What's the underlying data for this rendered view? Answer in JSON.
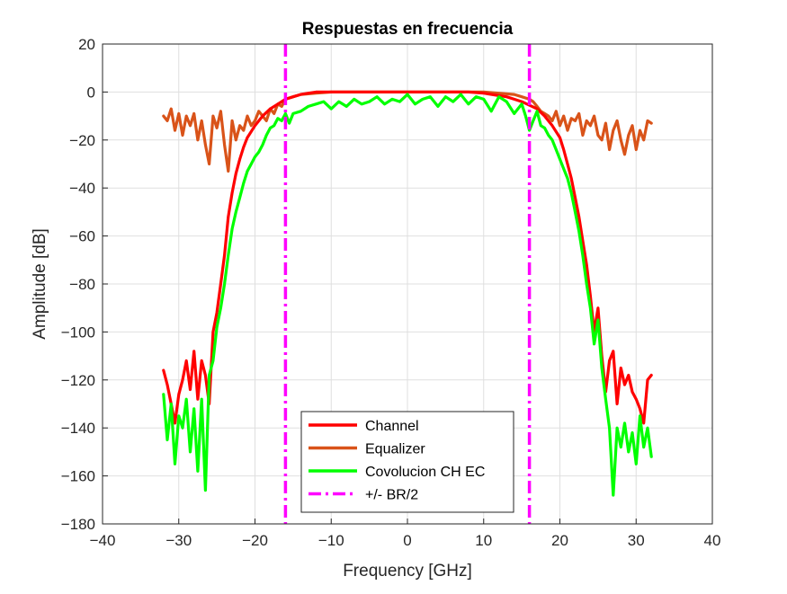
{
  "chart_data": {
    "type": "line",
    "title": "Respuestas en frecuencia",
    "xlabel": "Frequency [GHz]",
    "ylabel": "Amplitude [dB]",
    "xlim": [
      -40,
      40
    ],
    "ylim": [
      -180,
      20
    ],
    "xticks": [
      -40,
      -30,
      -20,
      -10,
      0,
      10,
      20,
      30,
      40
    ],
    "yticks": [
      20,
      0,
      -20,
      -40,
      -60,
      -80,
      -100,
      -120,
      -140,
      -160,
      -180
    ],
    "grid": true,
    "legend_position": "bottom-center",
    "series": [
      {
        "name": "Channel",
        "color": "#ff0000",
        "style": "solid",
        "x": [
          -32,
          -31.5,
          -31,
          -30.5,
          -30,
          -29.5,
          -29,
          -28.5,
          -28,
          -27.5,
          -27,
          -26.5,
          -26,
          -25.5,
          -25,
          -24.5,
          -24,
          -23.5,
          -23,
          -22.5,
          -22,
          -21.5,
          -21,
          -20,
          -19,
          -18,
          -17,
          -16,
          -15,
          -14,
          -13,
          -12,
          -10,
          -8,
          -6,
          -4,
          -2,
          0,
          2,
          4,
          6,
          8,
          10,
          11,
          12,
          13,
          14,
          15,
          16,
          17,
          18,
          19,
          20,
          20.5,
          21,
          21.5,
          22,
          22.5,
          23,
          23.5,
          24,
          24.5,
          25,
          25.5,
          26,
          26.5,
          27,
          27.5,
          28,
          28.5,
          29,
          29.5,
          30,
          30.5,
          31,
          31.5,
          32
        ],
        "y": [
          -116,
          -122,
          -130,
          -138,
          -126,
          -120,
          -112,
          -124,
          -108,
          -128,
          -112,
          -118,
          -130,
          -100,
          -92,
          -80,
          -68,
          -52,
          -42,
          -34,
          -28,
          -23,
          -19,
          -14,
          -10,
          -7,
          -5,
          -3,
          -2,
          -1,
          -0.5,
          0,
          0,
          0,
          0,
          0,
          0,
          0,
          0,
          0,
          0,
          0,
          -0.5,
          -1,
          -1.5,
          -2,
          -3,
          -4,
          -5.5,
          -7,
          -10,
          -14,
          -19,
          -24,
          -30,
          -36,
          -44,
          -52,
          -62,
          -72,
          -85,
          -100,
          -90,
          -110,
          -125,
          -112,
          -108,
          -130,
          -115,
          -122,
          -118,
          -125,
          -128,
          -132,
          -138,
          -120,
          -118
        ]
      },
      {
        "name": "Equalizer",
        "color": "#d95319",
        "style": "solid",
        "x": [
          -32,
          -31.5,
          -31,
          -30.5,
          -30,
          -29.5,
          -29,
          -28.5,
          -28,
          -27.5,
          -27,
          -26.5,
          -26,
          -25.5,
          -25,
          -24.5,
          -24,
          -23.5,
          -23,
          -22.5,
          -22,
          -21.5,
          -21,
          -20.5,
          -20,
          -19.5,
          -19,
          -18.5,
          -18,
          -17.5,
          -17,
          -16.5,
          -16,
          -15,
          -14,
          -12,
          -10,
          -8,
          -6,
          -4,
          -2,
          0,
          2,
          4,
          6,
          8,
          10,
          12,
          14,
          15,
          16,
          16.5,
          17,
          17.5,
          18,
          18.5,
          19,
          19.5,
          20,
          20.5,
          21,
          21.5,
          22,
          22.5,
          23,
          23.5,
          24,
          24.5,
          25,
          25.5,
          26,
          26.5,
          27,
          27.5,
          28,
          28.5,
          29,
          29.5,
          30,
          30.5,
          31,
          31.5,
          32
        ],
        "y": [
          -10,
          -12,
          -7,
          -16,
          -9,
          -18,
          -10,
          -14,
          -9,
          -20,
          -12,
          -22,
          -30,
          -10,
          -15,
          -8,
          -22,
          -33,
          -12,
          -20,
          -14,
          -16,
          -10,
          -14,
          -12,
          -8,
          -10,
          -12,
          -7,
          -9,
          -5,
          -6,
          -3,
          -2,
          -1,
          -0.5,
          0,
          0,
          0,
          0,
          0,
          0,
          0,
          0,
          0,
          0,
          0,
          -0.5,
          -1,
          -2,
          -3,
          -4,
          -6,
          -8,
          -9,
          -10,
          -12,
          -8,
          -14,
          -10,
          -16,
          -11,
          -12,
          -9,
          -18,
          -12,
          -14,
          -10,
          -18,
          -20,
          -13,
          -24,
          -16,
          -12,
          -20,
          -26,
          -18,
          -14,
          -24,
          -16,
          -20,
          -12,
          -13
        ]
      },
      {
        "name": "Covolucion CH EC",
        "color": "#00ff00",
        "style": "solid",
        "x": [
          -32,
          -31.5,
          -31,
          -30.5,
          -30,
          -29.5,
          -29,
          -28.5,
          -28,
          -27.5,
          -27,
          -26.5,
          -26,
          -25.5,
          -25,
          -24.5,
          -24,
          -23.5,
          -23,
          -22.5,
          -22,
          -21.5,
          -21,
          -20.5,
          -20,
          -19.5,
          -19,
          -18.5,
          -18,
          -17.5,
          -17,
          -16.5,
          -16,
          -15.5,
          -15,
          -14,
          -13,
          -12,
          -11,
          -10,
          -9,
          -8,
          -7,
          -6,
          -5,
          -4,
          -3,
          -2,
          -1,
          0,
          1,
          2,
          3,
          4,
          5,
          6,
          7,
          8,
          9,
          10,
          11,
          12,
          13,
          14,
          15,
          15.5,
          16,
          16.5,
          17,
          17.5,
          18,
          18.5,
          19,
          19.5,
          20,
          20.5,
          21,
          21.5,
          22,
          22.5,
          23,
          23.5,
          24,
          24.5,
          25,
          25.5,
          26,
          26.5,
          27,
          27.5,
          28,
          28.5,
          29,
          29.5,
          30,
          30.5,
          31,
          31.5,
          32
        ],
        "y": [
          -126,
          -145,
          -130,
          -155,
          -135,
          -140,
          -128,
          -150,
          -132,
          -158,
          -128,
          -166,
          -118,
          -112,
          -98,
          -90,
          -80,
          -68,
          -57,
          -50,
          -44,
          -38,
          -33,
          -30,
          -27,
          -25,
          -22,
          -18,
          -15,
          -14,
          -11,
          -12,
          -9,
          -13,
          -9,
          -8,
          -6,
          -5,
          -4,
          -7,
          -4,
          -6,
          -3,
          -5,
          -4,
          -2,
          -5,
          -3,
          -4,
          -1,
          -5,
          -3,
          -2,
          -6,
          -2,
          -4,
          -1,
          -5,
          -2,
          -3,
          -8,
          -2,
          -4,
          -9,
          -5,
          -10,
          -16,
          -12,
          -8,
          -14,
          -15,
          -18,
          -20,
          -24,
          -28,
          -32,
          -36,
          -42,
          -50,
          -58,
          -68,
          -80,
          -90,
          -105,
          -95,
          -115,
          -128,
          -140,
          -168,
          -140,
          -148,
          -138,
          -150,
          -142,
          -155,
          -135,
          -148,
          -140,
          -152
        ]
      },
      {
        "name": "+/- BR/2",
        "color": "#ff00ff",
        "style": "dashdot",
        "vlines": [
          -16,
          16
        ]
      }
    ]
  }
}
